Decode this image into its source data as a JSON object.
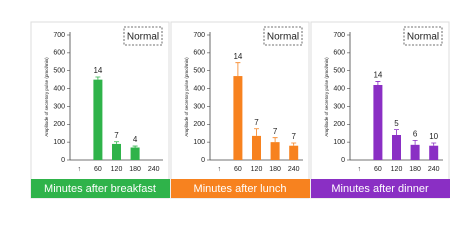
{
  "chart_data": [
    {
      "type": "bar",
      "annotation": "Normal",
      "y_label": "Amplitude of secretory pulse (pmol/min)",
      "x_label": "Minutes after breakfast",
      "color": "#2fb34a",
      "categories": [
        "↑",
        "60",
        "120",
        "180",
        "240"
      ],
      "values": [
        null,
        450,
        90,
        70,
        null
      ],
      "errors": [
        null,
        15,
        12,
        8,
        null
      ],
      "bar_labels": [
        null,
        "14",
        "7",
        "4",
        null
      ],
      "ylim": [
        0,
        700
      ],
      "yticks": [
        0,
        100,
        200,
        300,
        400,
        500,
        600,
        700
      ]
    },
    {
      "type": "bar",
      "annotation": "Normal",
      "y_label": "Amplitude of secretory pulse (pmol/min)",
      "x_label": "Minutes after lunch",
      "color": "#f7821f",
      "categories": [
        "↑",
        "60",
        "120",
        "180",
        "240"
      ],
      "values": [
        null,
        470,
        135,
        100,
        80
      ],
      "errors": [
        null,
        75,
        40,
        25,
        15
      ],
      "bar_labels": [
        null,
        "14",
        "7",
        "7",
        "7"
      ],
      "ylim": [
        0,
        700
      ],
      "yticks": [
        0,
        100,
        200,
        300,
        400,
        500,
        600,
        700
      ]
    },
    {
      "type": "bar",
      "annotation": "Normal",
      "y_label": "Amplitude of secretory pulse (pmol/min)",
      "x_label": "Minutes after dinner",
      "color": "#8a2fc4",
      "categories": [
        "↑",
        "60",
        "120",
        "180",
        "240"
      ],
      "values": [
        null,
        420,
        140,
        85,
        80
      ],
      "errors": [
        null,
        20,
        30,
        25,
        15
      ],
      "bar_labels": [
        null,
        "14",
        "5",
        "6",
        "10"
      ],
      "ylim": [
        0,
        700
      ],
      "yticks": [
        0,
        100,
        200,
        300,
        400,
        500,
        600,
        700
      ]
    }
  ]
}
